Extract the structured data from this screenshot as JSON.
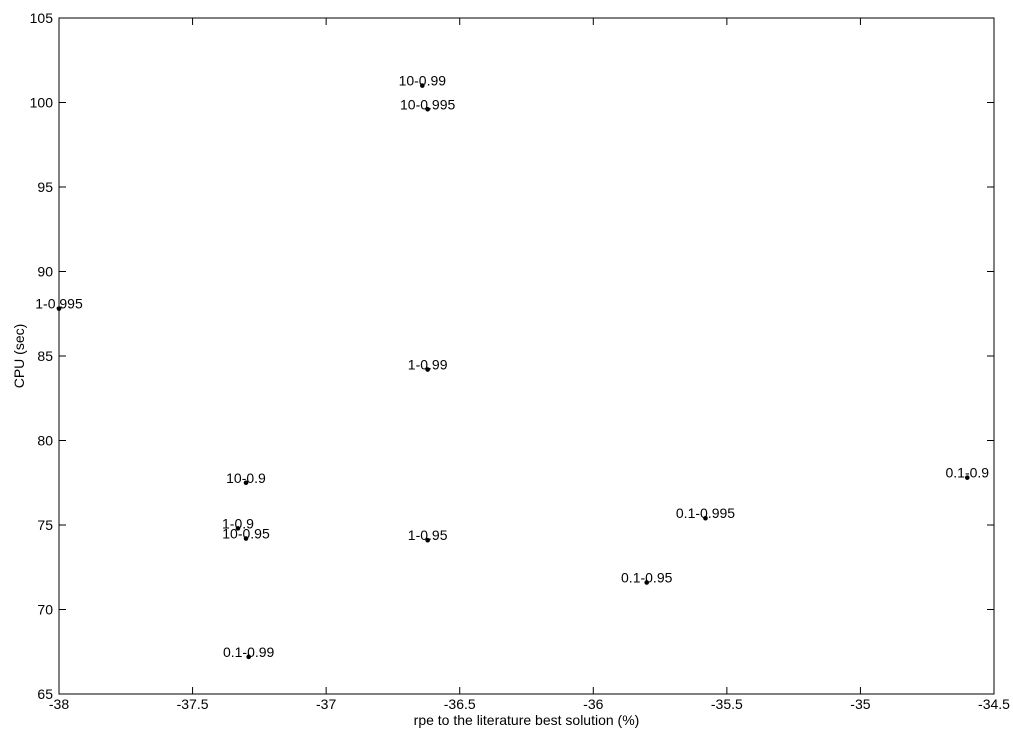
{
  "chart_data": {
    "type": "scatter",
    "title": "",
    "xlabel": "rpe to the literature best solution (%)",
    "ylabel": "CPU (sec)",
    "xlim": [
      -38,
      -34.5
    ],
    "ylim": [
      65,
      105
    ],
    "grid": false,
    "legend": "none",
    "xticks": [
      -38,
      -37.5,
      -37,
      -36.5,
      -36,
      -35.5,
      -35,
      -34.5
    ],
    "xtick_labels": [
      "-38",
      "-37.5",
      "-37",
      "-36.5",
      "-36",
      "-35.5",
      "-35",
      "-34.5"
    ],
    "yticks": [
      65,
      70,
      75,
      80,
      85,
      90,
      95,
      100,
      105
    ],
    "ytick_labels": [
      "65",
      "70",
      "75",
      "80",
      "85",
      "90",
      "95",
      "100",
      "105"
    ],
    "colors": {
      "marker": "#000000",
      "axes": "#000000",
      "text": "#000000"
    },
    "points": [
      {
        "label": "10-0.99",
        "x": -36.64,
        "y": 101.0
      },
      {
        "label": "10-0.995",
        "x": -36.62,
        "y": 99.6
      },
      {
        "label": "1-0.995",
        "x": -38.0,
        "y": 87.8
      },
      {
        "label": "1-0.99",
        "x": -36.62,
        "y": 84.2
      },
      {
        "label": "10-0.9",
        "x": -37.3,
        "y": 77.5
      },
      {
        "label": "0.1-0.9",
        "x": -34.6,
        "y": 77.8
      },
      {
        "label": "1-0.9",
        "x": -37.33,
        "y": 74.8
      },
      {
        "label": "10-0.95",
        "x": -37.3,
        "y": 74.2
      },
      {
        "label": "1-0.95",
        "x": -36.62,
        "y": 74.1
      },
      {
        "label": "0.1-0.995",
        "x": -35.58,
        "y": 75.4
      },
      {
        "label": "0.1-0.95",
        "x": -35.8,
        "y": 71.6
      },
      {
        "label": "0.1-0.99",
        "x": -37.29,
        "y": 67.2
      }
    ]
  }
}
